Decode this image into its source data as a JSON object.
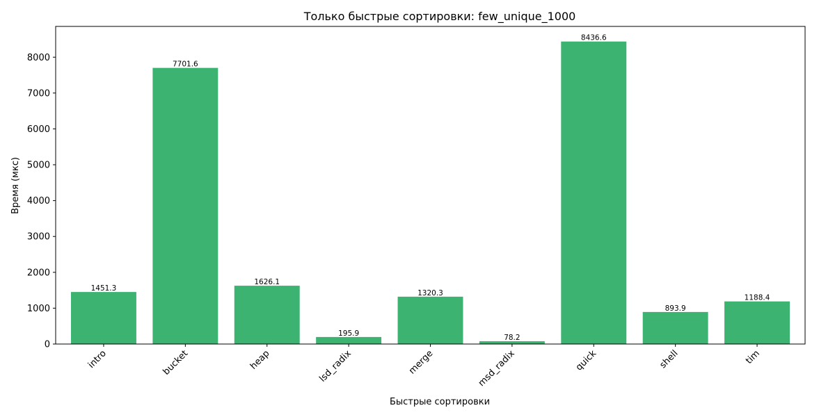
{
  "chart_data": {
    "type": "bar",
    "title": "Только быстрые сортировки: few_unique_1000",
    "xlabel": "Быстрые сортировки",
    "ylabel": "Время (мкс)",
    "categories": [
      "intro",
      "bucket",
      "heap",
      "lsd_radix",
      "merge",
      "msd_radix",
      "quick",
      "shell",
      "tim"
    ],
    "values": [
      1451.3,
      7701.6,
      1626.1,
      195.9,
      1320.3,
      78.2,
      8436.6,
      893.9,
      1188.4
    ],
    "value_labels": [
      "1451.3",
      "7701.6",
      "1626.1",
      "195.9",
      "1320.3",
      "78.2",
      "8436.6",
      "893.9",
      "1188.4"
    ],
    "ylim": [
      0,
      8858
    ],
    "yticks": [
      0,
      1000,
      2000,
      3000,
      4000,
      5000,
      6000,
      7000,
      8000
    ],
    "ytick_labels": [
      "0",
      "1000",
      "2000",
      "3000",
      "4000",
      "5000",
      "6000",
      "7000",
      "8000"
    ],
    "grid": false,
    "bar_color": "#3cb371"
  }
}
